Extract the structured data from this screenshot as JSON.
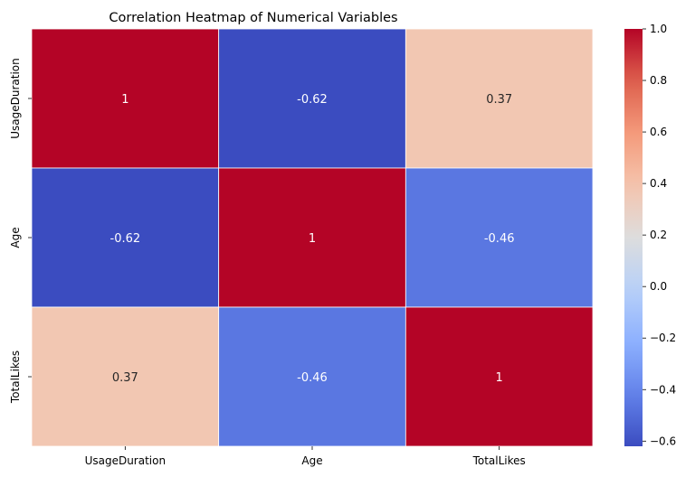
{
  "chart_data": {
    "type": "heatmap",
    "title": "Correlation Heatmap of Numerical Variables",
    "x_labels": [
      "UsageDuration",
      "Age",
      "TotalLikes"
    ],
    "y_labels": [
      "UsageDuration",
      "Age",
      "TotalLikes"
    ],
    "values": [
      [
        1,
        -0.62,
        0.37
      ],
      [
        -0.62,
        1,
        -0.46
      ],
      [
        0.37,
        -0.46,
        1
      ]
    ],
    "annotations": [
      [
        "1",
        "-0.62",
        "0.37"
      ],
      [
        "-0.62",
        "1",
        "-0.46"
      ],
      [
        "0.37",
        "-0.46",
        "1"
      ]
    ],
    "colormap": "coolwarm",
    "vmin": -0.62,
    "vmax": 1,
    "colorbar_ticks": [
      1.0,
      0.8,
      0.6,
      0.4,
      0.2,
      0.0,
      -0.2,
      -0.4,
      -0.6
    ],
    "colorbar_tick_labels": [
      "1.0",
      "0.8",
      "0.6",
      "0.4",
      "0.2",
      "0.0",
      "−0.2",
      "−0.4",
      "−0.6"
    ],
    "grid_line_color": "#ffffff"
  }
}
